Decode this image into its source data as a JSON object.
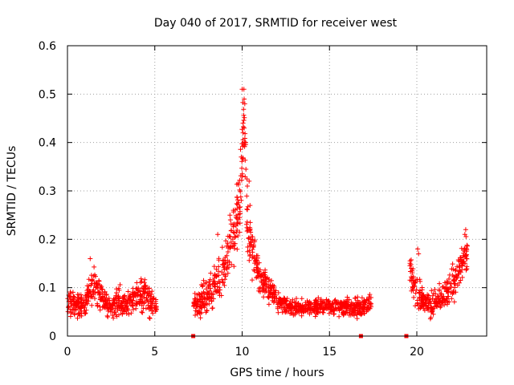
{
  "chart_data": {
    "type": "scatter",
    "title": "Day 040 of 2017, SRMTID for receiver west",
    "xlabel": "GPS time / hours",
    "ylabel": "SRMTID / TECUs",
    "xlim": [
      0,
      24
    ],
    "ylim": [
      0,
      0.6
    ],
    "xticks": [
      0,
      5,
      10,
      15,
      20
    ],
    "yticks": [
      0,
      0.1,
      0.2,
      0.3,
      0.4,
      0.5,
      0.6
    ],
    "xtick_labels": [
      "0",
      "5",
      "10",
      "15",
      "20"
    ],
    "ytick_labels": [
      "0",
      "0.1",
      "0.2",
      "0.3",
      "0.4",
      "0.5",
      "0.6"
    ],
    "grid": true,
    "marker": "+",
    "color": "#ff0000",
    "series": [
      {
        "name": "SRMTID",
        "profile_x": [
          0,
          0.5,
          1.0,
          1.4,
          2.0,
          2.5,
          3.0,
          3.5,
          4.0,
          4.5,
          5.0,
          7.2,
          7.6,
          8.0,
          8.5,
          9.0,
          9.3,
          9.6,
          9.9,
          10.1,
          10.3,
          10.6,
          10.9,
          11.3,
          11.8,
          12.3,
          13.0,
          14.0,
          15.0,
          16.0,
          16.8,
          17.3,
          19.6,
          19.9,
          20.3,
          20.8,
          21.3,
          21.8,
          22.3,
          22.8
        ],
        "profile_y": [
          0.075,
          0.065,
          0.06,
          0.11,
          0.075,
          0.06,
          0.07,
          0.065,
          0.08,
          0.085,
          0.065,
          0.07,
          0.065,
          0.085,
          0.11,
          0.15,
          0.19,
          0.22,
          0.3,
          0.45,
          0.24,
          0.17,
          0.13,
          0.11,
          0.085,
          0.065,
          0.06,
          0.06,
          0.06,
          0.06,
          0.06,
          0.065,
          0.13,
          0.1,
          0.07,
          0.065,
          0.075,
          0.09,
          0.12,
          0.17
        ],
        "spread_y": [
          0.022,
          0.022,
          0.02,
          0.03,
          0.022,
          0.02,
          0.025,
          0.022,
          0.028,
          0.03,
          0.02,
          0.018,
          0.022,
          0.028,
          0.035,
          0.04,
          0.045,
          0.05,
          0.06,
          0.05,
          0.06,
          0.04,
          0.03,
          0.025,
          0.02,
          0.015,
          0.012,
          0.012,
          0.012,
          0.014,
          0.016,
          0.018,
          0.03,
          0.028,
          0.022,
          0.02,
          0.025,
          0.025,
          0.03,
          0.03
        ],
        "active_intervals": [
          [
            0,
            5.1
          ],
          [
            7.2,
            17.4
          ],
          [
            19.6,
            22.9
          ]
        ],
        "peak_points": [
          [
            10.0,
            0.51
          ],
          [
            10.1,
            0.51
          ],
          [
            10.15,
            0.48
          ],
          [
            10.05,
            0.44
          ],
          [
            10.2,
            0.4
          ],
          [
            9.95,
            0.37
          ],
          [
            10.3,
            0.31
          ],
          [
            10.4,
            0.32
          ],
          [
            10.45,
            0.27
          ],
          [
            22.8,
            0.22
          ],
          [
            22.75,
            0.21
          ],
          [
            1.3,
            0.16
          ],
          [
            20.05,
            0.18
          ],
          [
            20.1,
            0.17
          ],
          [
            9.3,
            0.25
          ],
          [
            9.5,
            0.26
          ],
          [
            8.6,
            0.21
          ]
        ],
        "zero_points": [
          [
            7.2,
            0.0
          ],
          [
            16.8,
            0.0
          ],
          [
            19.4,
            0.0
          ]
        ],
        "points_per_hour": 90,
        "seed": 40
      }
    ]
  }
}
